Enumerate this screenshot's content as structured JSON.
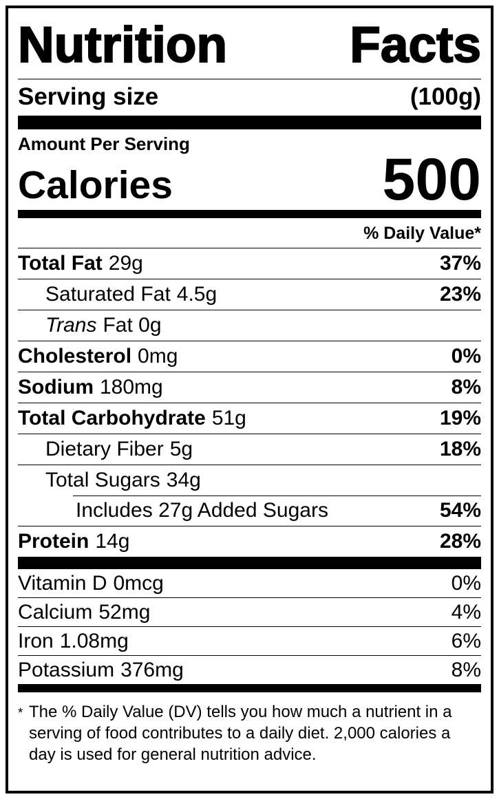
{
  "label": {
    "title": {
      "word1": "Nutrition",
      "word2": "Facts"
    },
    "serving": {
      "label": "Serving size",
      "value": "(100g)"
    },
    "amount_per_serving": "Amount Per Serving",
    "calories": {
      "label": "Calories",
      "value": "500"
    },
    "daily_value_header": "% Daily Value*",
    "nutrients": [
      {
        "name": "Total Fat",
        "amount": "29g",
        "dv": "37%"
      },
      {
        "name": "Saturated Fat",
        "amount": "4.5g",
        "dv": "23%"
      },
      {
        "name": "Trans",
        "amount": "Fat 0g",
        "dv": ""
      },
      {
        "name": "Cholesterol",
        "amount": "0mg",
        "dv": "0%"
      },
      {
        "name": "Sodium",
        "amount": "180mg",
        "dv": "8%"
      },
      {
        "name": "Total Carbohydrate",
        "amount": "51g",
        "dv": "19%"
      },
      {
        "name": "Dietary Fiber",
        "amount": "5g",
        "dv": "18%"
      },
      {
        "name": "Total Sugars",
        "amount": "34g",
        "dv": ""
      },
      {
        "name": "Includes 27g Added Sugars",
        "amount": "",
        "dv": "54%"
      },
      {
        "name": "Protein",
        "amount": "14g",
        "dv": "28%"
      }
    ],
    "micronutrients": [
      {
        "name": "Vitamin D",
        "amount": "0mcg",
        "dv": "0%"
      },
      {
        "name": "Calcium",
        "amount": "52mg",
        "dv": "4%"
      },
      {
        "name": "Iron",
        "amount": "1.08mg",
        "dv": "6%"
      },
      {
        "name": "Potassium",
        "amount": "376mg",
        "dv": "8%"
      }
    ],
    "footnote": {
      "marker": "*",
      "text": "The % Daily Value (DV) tells you how much a nutrient in a serving of food contributes to a daily diet. 2,000 calories a day is used for general nutrition advice."
    },
    "colors": {
      "ink": "#000000",
      "background": "#ffffff"
    }
  }
}
